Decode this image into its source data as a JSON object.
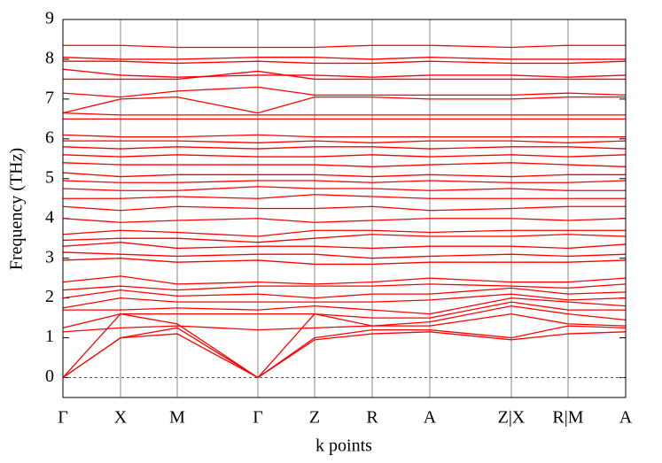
{
  "chart_data": {
    "type": "line",
    "xlabel": "k points",
    "ylabel": "Frequency (THz)",
    "color": "#ff0000",
    "x": [
      0,
      65,
      129,
      220,
      284,
      349,
      414,
      506,
      570,
      635
    ],
    "xlim": [
      0,
      635
    ],
    "xticks": [
      {
        "value": 0,
        "label": "Γ"
      },
      {
        "value": 65,
        "label": "X"
      },
      {
        "value": 129,
        "label": "M"
      },
      {
        "value": 220,
        "label": "Γ"
      },
      {
        "value": 284,
        "label": "Z"
      },
      {
        "value": 349,
        "label": "R"
      },
      {
        "value": 414,
        "label": "A"
      },
      {
        "value": 506,
        "label": "Z|X"
      },
      {
        "value": 570,
        "label": "R|M"
      },
      {
        "value": 635,
        "label": "A"
      }
    ],
    "ylim": [
      -0.5,
      9
    ],
    "yticks": [
      0,
      1,
      2,
      3,
      4,
      5,
      6,
      7,
      8,
      9
    ],
    "xgrid": true,
    "hlines": [
      0
    ],
    "series": [
      {
        "values": [
          0,
          1.0,
          1.1,
          0,
          0.95,
          1.1,
          1.15,
          0.95,
          1.1,
          1.15
        ]
      },
      {
        "values": [
          0,
          1.0,
          1.25,
          0,
          1.0,
          1.2,
          1.2,
          1.0,
          1.3,
          1.25
        ]
      },
      {
        "values": [
          0,
          1.6,
          1.35,
          0,
          1.6,
          1.3,
          1.3,
          1.6,
          1.35,
          1.3
        ]
      },
      {
        "values": [
          1.15,
          1.25,
          1.3,
          1.2,
          1.25,
          1.3,
          1.4,
          1.8,
          1.6,
          1.45
        ]
      },
      {
        "values": [
          1.25,
          1.6,
          1.6,
          1.6,
          1.6,
          1.5,
          1.5,
          1.9,
          1.7,
          1.7
        ]
      },
      {
        "values": [
          1.7,
          1.7,
          1.75,
          1.7,
          1.8,
          1.7,
          1.6,
          2.0,
          1.9,
          1.8
        ]
      },
      {
        "values": [
          1.75,
          2.0,
          1.9,
          1.9,
          1.9,
          1.9,
          1.95,
          2.1,
          1.95,
          2.0
        ]
      },
      {
        "values": [
          2.0,
          2.2,
          2.05,
          2.1,
          2.0,
          2.1,
          2.1,
          2.25,
          2.1,
          2.15
        ]
      },
      {
        "values": [
          2.2,
          2.3,
          2.2,
          2.3,
          2.3,
          2.3,
          2.35,
          2.3,
          2.25,
          2.35
        ]
      },
      {
        "values": [
          2.4,
          2.55,
          2.35,
          2.4,
          2.35,
          2.4,
          2.5,
          2.4,
          2.4,
          2.5
        ]
      },
      {
        "values": [
          2.95,
          3.0,
          2.9,
          2.95,
          2.85,
          2.85,
          2.9,
          2.9,
          2.9,
          2.95
        ]
      },
      {
        "values": [
          3.15,
          3.1,
          3.05,
          3.1,
          3.1,
          3.0,
          3.05,
          3.1,
          3.05,
          3.1
        ]
      },
      {
        "values": [
          3.3,
          3.4,
          3.25,
          3.3,
          3.3,
          3.25,
          3.3,
          3.3,
          3.25,
          3.35
        ]
      },
      {
        "values": [
          3.45,
          3.5,
          3.5,
          3.4,
          3.5,
          3.6,
          3.55,
          3.55,
          3.6,
          3.55
        ]
      },
      {
        "values": [
          3.6,
          3.7,
          3.65,
          3.55,
          3.7,
          3.7,
          3.65,
          3.7,
          3.7,
          3.7
        ]
      },
      {
        "values": [
          4.0,
          3.9,
          3.95,
          4.0,
          3.9,
          3.95,
          4.0,
          4.0,
          3.95,
          4.0
        ]
      },
      {
        "values": [
          4.3,
          4.2,
          4.3,
          4.25,
          4.25,
          4.3,
          4.2,
          4.25,
          4.3,
          4.3
        ]
      },
      {
        "values": [
          4.5,
          4.5,
          4.55,
          4.5,
          4.6,
          4.55,
          4.5,
          4.5,
          4.5,
          4.5
        ]
      },
      {
        "values": [
          4.75,
          4.7,
          4.7,
          4.8,
          4.75,
          4.75,
          4.7,
          4.75,
          4.7,
          4.7
        ]
      },
      {
        "values": [
          4.95,
          4.9,
          4.9,
          4.95,
          4.95,
          4.9,
          4.95,
          4.9,
          4.9,
          4.95
        ]
      },
      {
        "values": [
          5.15,
          5.05,
          5.1,
          5.1,
          5.1,
          5.05,
          5.1,
          5.05,
          5.1,
          5.1
        ]
      },
      {
        "values": [
          5.4,
          5.35,
          5.35,
          5.35,
          5.35,
          5.3,
          5.35,
          5.4,
          5.35,
          5.3
        ]
      },
      {
        "values": [
          5.6,
          5.55,
          5.6,
          5.55,
          5.55,
          5.6,
          5.55,
          5.6,
          5.55,
          5.6
        ]
      },
      {
        "values": [
          5.8,
          5.75,
          5.8,
          5.75,
          5.8,
          5.8,
          5.75,
          5.8,
          5.8,
          5.75
        ]
      },
      {
        "values": [
          5.95,
          5.95,
          5.95,
          5.9,
          5.95,
          5.9,
          5.95,
          5.95,
          5.9,
          5.95
        ]
      },
      {
        "values": [
          6.1,
          6.05,
          6.05,
          6.1,
          6.05,
          6.05,
          6.05,
          6.05,
          6.05,
          6.05
        ]
      },
      {
        "values": [
          6.5,
          6.5,
          6.5,
          6.5,
          6.5,
          6.5,
          6.5,
          6.5,
          6.5,
          6.5
        ]
      },
      {
        "values": [
          6.65,
          6.6,
          6.6,
          6.6,
          6.6,
          6.6,
          6.6,
          6.6,
          6.6,
          6.6
        ]
      },
      {
        "values": [
          6.65,
          7.0,
          7.05,
          6.65,
          7.05,
          7.05,
          7.0,
          7.0,
          7.05,
          7.05
        ]
      },
      {
        "values": [
          7.15,
          7.05,
          7.2,
          7.3,
          7.1,
          7.1,
          7.1,
          7.1,
          7.15,
          7.1
        ]
      },
      {
        "values": [
          7.5,
          7.5,
          7.5,
          7.7,
          7.5,
          7.5,
          7.5,
          7.5,
          7.5,
          7.5
        ]
      },
      {
        "values": [
          7.75,
          7.6,
          7.55,
          7.6,
          7.6,
          7.55,
          7.6,
          7.6,
          7.55,
          7.6
        ]
      },
      {
        "values": [
          7.95,
          7.95,
          7.9,
          7.95,
          7.9,
          7.9,
          7.95,
          7.9,
          7.9,
          7.95
        ]
      },
      {
        "values": [
          8.05,
          8.0,
          8.0,
          8.05,
          8.05,
          8.0,
          8.05,
          8.0,
          8.0,
          8.0
        ]
      },
      {
        "values": [
          8.35,
          8.35,
          8.3,
          8.3,
          8.3,
          8.35,
          8.35,
          8.3,
          8.35,
          8.35
        ]
      }
    ]
  }
}
